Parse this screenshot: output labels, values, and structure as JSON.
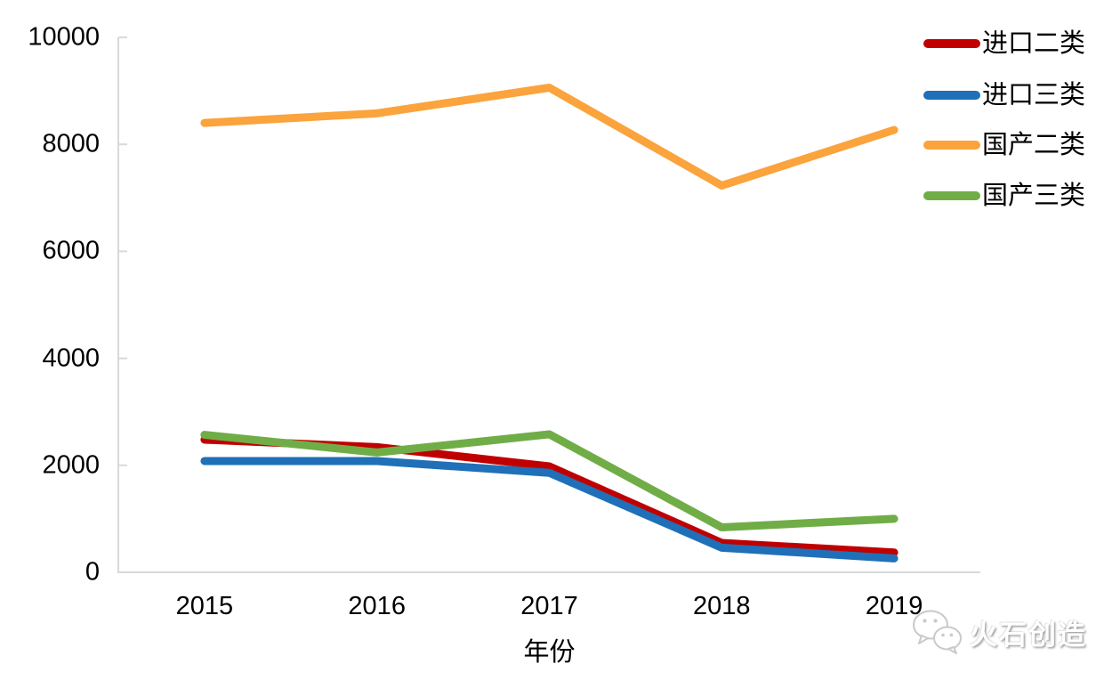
{
  "chart_data": {
    "type": "line",
    "categories": [
      "2015",
      "2016",
      "2017",
      "2018",
      "2019"
    ],
    "series": [
      {
        "name": "进口二类",
        "color": "#C00000",
        "values": [
          2480,
          2340,
          1980,
          550,
          370
        ]
      },
      {
        "name": "进口三类",
        "color": "#1F70B8",
        "values": [
          2080,
          2080,
          1860,
          460,
          260
        ]
      },
      {
        "name": "国产二类",
        "color": "#FBA33C",
        "values": [
          8400,
          8580,
          9060,
          7230,
          8270
        ]
      },
      {
        "name": "国产三类",
        "color": "#70AD47",
        "values": [
          2570,
          2240,
          2580,
          840,
          1000
        ]
      }
    ],
    "title": "",
    "xlabel": "年份",
    "ylabel": "",
    "ylim": [
      0,
      10000
    ],
    "ytick_interval": 2000,
    "yticks_top_down": [
      "10000",
      "8000",
      "6000",
      "4000",
      "2000",
      "0"
    ],
    "grid": false,
    "legend_position": "right-top",
    "axis_color": "#D9D9D9"
  },
  "watermark": {
    "text": "火石创造",
    "icon": "wechat-icon"
  }
}
